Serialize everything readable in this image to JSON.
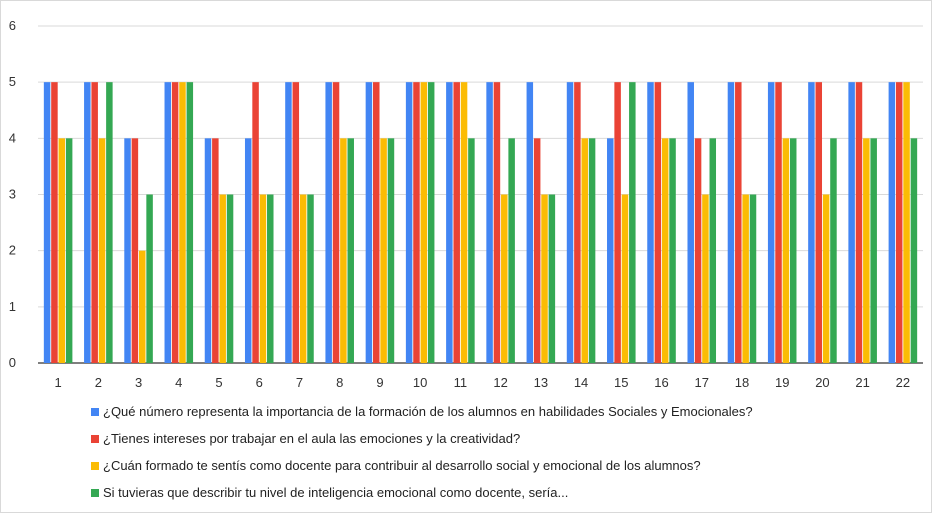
{
  "chart_data": {
    "type": "bar",
    "categories": [
      "1",
      "2",
      "3",
      "4",
      "5",
      "6",
      "7",
      "8",
      "9",
      "10",
      "11",
      "12",
      "13",
      "14",
      "15",
      "16",
      "17",
      "18",
      "19",
      "20",
      "21",
      "22"
    ],
    "yticks": [
      "0",
      "1",
      "2",
      "3",
      "4",
      "5",
      "6"
    ],
    "ylim": [
      0,
      6
    ],
    "grid": true,
    "legend_position": "bottom",
    "series": [
      {
        "name": "¿Qué número representa la importancia de la formación de los alumnos en habilidades Sociales y Emocionales?",
        "color": "#4285F4",
        "values": [
          5,
          5,
          4,
          5,
          4,
          4,
          5,
          5,
          5,
          5,
          5,
          5,
          5,
          5,
          4,
          5,
          5,
          5,
          5,
          5,
          5,
          5
        ]
      },
      {
        "name": "¿Tienes intereses por trabajar en el aula las emociones y la creatividad?",
        "color": "#EA4335",
        "values": [
          5,
          5,
          4,
          5,
          4,
          5,
          5,
          5,
          5,
          5,
          5,
          5,
          4,
          5,
          5,
          5,
          4,
          5,
          5,
          5,
          5,
          5
        ]
      },
      {
        "name": "¿Cuán formado te sentís como docente para contribuir al desarrollo social y emocional de los alumnos?",
        "color": "#FBBC04",
        "values": [
          4,
          4,
          2,
          5,
          3,
          3,
          3,
          4,
          4,
          5,
          5,
          3,
          3,
          4,
          3,
          4,
          3,
          3,
          4,
          3,
          4,
          5
        ]
      },
      {
        "name": "Si tuvieras que describir tu nivel de inteligencia emocional como docente, sería...",
        "color": "#34A853",
        "values": [
          4,
          5,
          3,
          5,
          3,
          3,
          3,
          4,
          4,
          5,
          4,
          4,
          3,
          4,
          5,
          4,
          4,
          3,
          4,
          4,
          4,
          4
        ]
      }
    ]
  }
}
